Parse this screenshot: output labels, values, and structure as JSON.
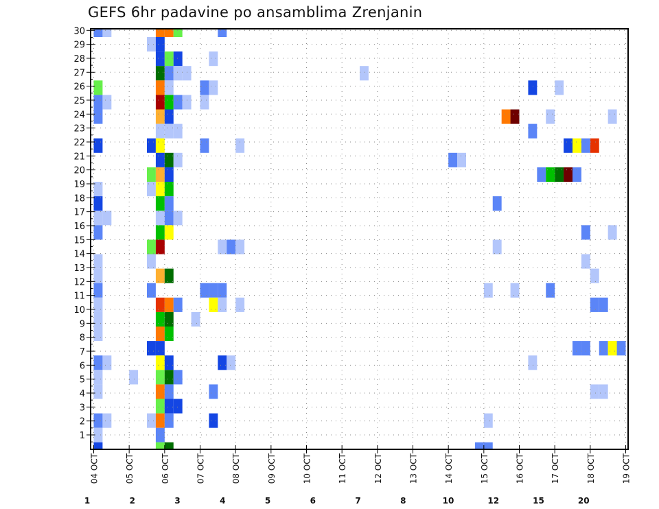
{
  "chart_data": {
    "type": "heatmap",
    "title": "GEFS 6hr padavine po ansamblima Zrenjanin",
    "xlabel": "",
    "ylabel": "",
    "y_ticks": [
      "1",
      "2",
      "3",
      "4",
      "5",
      "6",
      "7",
      "8",
      "9",
      "10",
      "11",
      "12",
      "13",
      "14",
      "15",
      "16",
      "17",
      "18",
      "19",
      "20",
      "21",
      "22",
      "23",
      "24",
      "25",
      "26",
      "27",
      "28",
      "29",
      "30"
    ],
    "x_ticks": [
      "04 OCT",
      "05 OCT",
      "06 OCT",
      "07 OCT",
      "08 OCT",
      "09 OCT",
      "10 OCT",
      "11 OCT",
      "12 OCT",
      "13 OCT",
      "14 OCT",
      "15 OCT",
      "16 OCT",
      "17 OCT",
      "18 OCT",
      "19 OCT"
    ],
    "x_range": [
      "04 OCT",
      "19 OCT"
    ],
    "time_step": "6hr",
    "steps_per_day": 4,
    "grid": true,
    "legend_position": "bottom",
    "colorbar": {
      "levels": [
        "1",
        "2",
        "3",
        "4",
        "5",
        "6",
        "7",
        "8",
        "10",
        "12",
        "15",
        "20"
      ],
      "colors": [
        "#b3c6fb",
        "#5b85f7",
        "#1446e3",
        "#66f04a",
        "#00c000",
        "#006e00",
        "#ffff00",
        "#ffb030",
        "#ff7800",
        "#e63200",
        "#a80000",
        "#6e0000"
      ]
    },
    "rows_note": "rows listed top to bottom; each cell is [time-step index from 04 OCT 00z, colour class 1-12]",
    "rows": [
      [
        [
          0,
          2
        ],
        [
          1,
          1
        ],
        [
          7,
          9
        ],
        [
          8,
          9
        ],
        [
          9,
          4
        ],
        [
          14,
          2
        ]
      ],
      [
        [
          6,
          1
        ],
        [
          7,
          3
        ]
      ],
      [
        [
          7,
          3
        ],
        [
          8,
          4
        ],
        [
          9,
          3
        ],
        [
          13,
          1
        ]
      ],
      [
        [
          7,
          6
        ],
        [
          8,
          2
        ],
        [
          9,
          1
        ],
        [
          10,
          1
        ],
        [
          30,
          1
        ]
      ],
      [
        [
          0,
          4
        ],
        [
          7,
          9
        ],
        [
          8,
          1
        ],
        [
          12,
          2
        ],
        [
          13,
          1
        ],
        [
          49,
          3
        ],
        [
          52,
          1
        ]
      ],
      [
        [
          0,
          2
        ],
        [
          1,
          1
        ],
        [
          7,
          11
        ],
        [
          8,
          5
        ],
        [
          9,
          2
        ],
        [
          10,
          1
        ],
        [
          12,
          1
        ]
      ],
      [
        [
          0,
          2
        ],
        [
          7,
          8
        ],
        [
          8,
          3
        ],
        [
          46,
          9
        ],
        [
          47,
          12
        ],
        [
          51,
          1
        ],
        [
          58,
          1
        ]
      ],
      [
        [
          7,
          1
        ],
        [
          8,
          1
        ],
        [
          9,
          1
        ],
        [
          49,
          2
        ]
      ],
      [
        [
          0,
          3
        ],
        [
          6,
          3
        ],
        [
          7,
          7
        ],
        [
          12,
          2
        ],
        [
          16,
          1
        ],
        [
          53,
          3
        ],
        [
          54,
          7
        ],
        [
          55,
          2
        ],
        [
          56,
          10
        ]
      ],
      [
        [
          7,
          3
        ],
        [
          8,
          6
        ],
        [
          9,
          1
        ],
        [
          40,
          2
        ],
        [
          41,
          1
        ]
      ],
      [
        [
          6,
          4
        ],
        [
          7,
          8
        ],
        [
          8,
          3
        ],
        [
          50,
          2
        ],
        [
          51,
          5
        ],
        [
          52,
          6
        ],
        [
          53,
          12
        ],
        [
          54,
          2
        ]
      ],
      [
        [
          0,
          1
        ],
        [
          6,
          1
        ],
        [
          7,
          7
        ],
        [
          8,
          5
        ]
      ],
      [
        [
          0,
          3
        ],
        [
          7,
          5
        ],
        [
          8,
          2
        ],
        [
          45,
          2
        ]
      ],
      [
        [
          0,
          1
        ],
        [
          1,
          1
        ],
        [
          7,
          1
        ],
        [
          8,
          2
        ],
        [
          9,
          1
        ]
      ],
      [
        [
          0,
          2
        ],
        [
          7,
          5
        ],
        [
          8,
          7
        ],
        [
          55,
          2
        ],
        [
          58,
          1
        ]
      ],
      [
        [
          6,
          4
        ],
        [
          7,
          11
        ],
        [
          14,
          1
        ],
        [
          15,
          2
        ],
        [
          16,
          1
        ],
        [
          45,
          1
        ]
      ],
      [
        [
          0,
          1
        ],
        [
          6,
          1
        ],
        [
          55,
          1
        ]
      ],
      [
        [
          0,
          1
        ],
        [
          7,
          8
        ],
        [
          8,
          6
        ],
        [
          56,
          1
        ]
      ],
      [
        [
          0,
          2
        ],
        [
          6,
          2
        ],
        [
          12,
          2
        ],
        [
          13,
          2
        ],
        [
          14,
          2
        ],
        [
          44,
          1
        ],
        [
          47,
          1
        ],
        [
          51,
          2
        ]
      ],
      [
        [
          0,
          1
        ],
        [
          7,
          10
        ],
        [
          8,
          9
        ],
        [
          9,
          2
        ],
        [
          13,
          7
        ],
        [
          14,
          1
        ],
        [
          16,
          1
        ],
        [
          56,
          2
        ],
        [
          57,
          2
        ]
      ],
      [
        [
          0,
          1
        ],
        [
          7,
          5
        ],
        [
          8,
          6
        ],
        [
          11,
          1
        ]
      ],
      [
        [
          0,
          1
        ],
        [
          7,
          9
        ],
        [
          8,
          5
        ]
      ],
      [
        [
          6,
          3
        ],
        [
          7,
          3
        ],
        [
          54,
          2
        ],
        [
          55,
          2
        ],
        [
          57,
          2
        ],
        [
          58,
          7
        ],
        [
          59,
          2
        ]
      ],
      [
        [
          0,
          2
        ],
        [
          1,
          1
        ],
        [
          7,
          7
        ],
        [
          8,
          3
        ],
        [
          14,
          3
        ],
        [
          15,
          1
        ],
        [
          49,
          1
        ]
      ],
      [
        [
          0,
          1
        ],
        [
          4,
          1
        ],
        [
          7,
          4
        ],
        [
          8,
          6
        ],
        [
          9,
          2
        ]
      ],
      [
        [
          0,
          1
        ],
        [
          7,
          9
        ],
        [
          8,
          2
        ],
        [
          13,
          2
        ],
        [
          56,
          1
        ],
        [
          57,
          1
        ]
      ],
      [
        [
          7,
          4
        ],
        [
          8,
          3
        ],
        [
          9,
          3
        ]
      ],
      [
        [
          0,
          2
        ],
        [
          1,
          1
        ],
        [
          6,
          1
        ],
        [
          7,
          9
        ],
        [
          8,
          2
        ],
        [
          13,
          3
        ],
        [
          44,
          1
        ]
      ],
      [
        [
          0,
          1
        ],
        [
          7,
          2
        ]
      ],
      [
        [
          0,
          3
        ],
        [
          7,
          4
        ],
        [
          8,
          6
        ],
        [
          43,
          2
        ],
        [
          44,
          2
        ]
      ]
    ]
  }
}
